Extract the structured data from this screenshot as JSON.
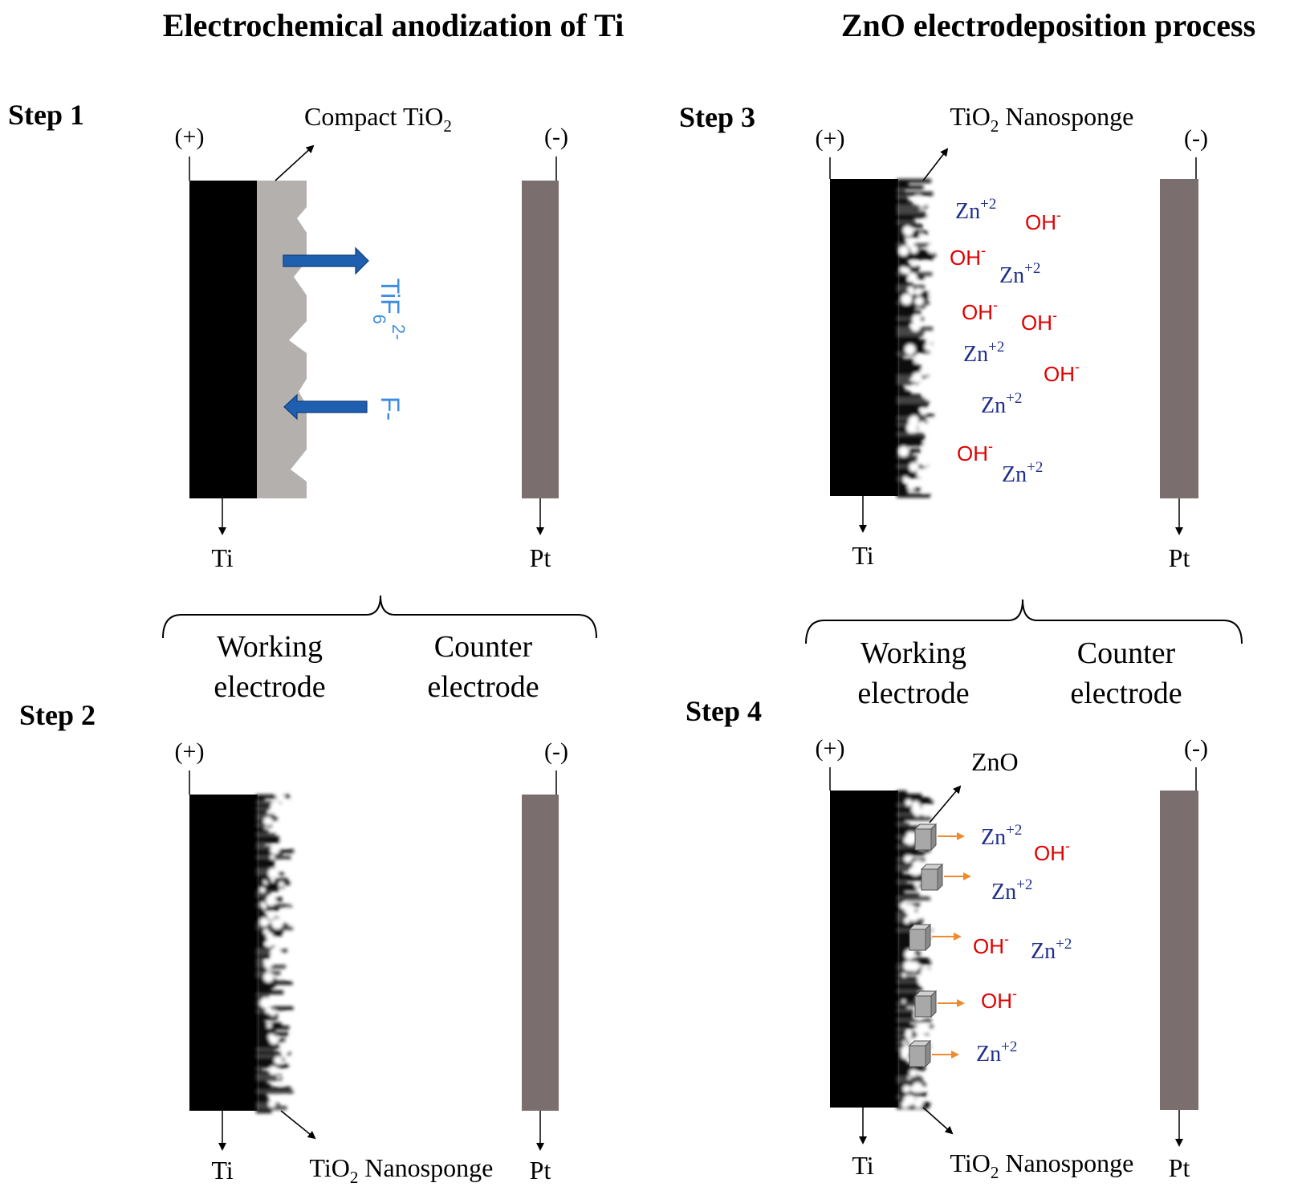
{
  "colors": {
    "electrode": "#000000",
    "counter": "#7a6e6e",
    "compact": "#b4b0ae",
    "blue_arrow": "#1f5fb0",
    "blue_label": "#3d8ee0",
    "zn": "#1f2f8a",
    "oh": "#e00000",
    "orange": "#f08a2e",
    "cube": "#a8a8a8"
  },
  "titles": {
    "anodization": "Electrochemical anodization of Ti",
    "electrodeposition": "ZnO electrodeposition process"
  },
  "step1": {
    "label": "Step 1",
    "plus": "(+)",
    "minus": "(-)",
    "compact_base": "Compact TiO",
    "compact_sub": "2",
    "tif_base": "TiF",
    "tif_sub": "6",
    "tif_sup": "2-",
    "f_ion": "F-",
    "ti": "Ti",
    "pt": "Pt"
  },
  "step2": {
    "label": "Step 2",
    "plus": "(+)",
    "minus": "(-)",
    "nanosponge_base": "TiO",
    "nanosponge_sub": "2",
    "nanosponge_rest": " Nanosponge",
    "ti": "Ti",
    "pt": "Pt"
  },
  "step3": {
    "label": "Step 3",
    "plus": "(+)",
    "minus": "(-)",
    "nanosponge_base": "TiO",
    "nanosponge_sub": "2",
    "nanosponge_rest": " Nanosponge",
    "ti": "Ti",
    "pt": "Pt",
    "ion_base_zn": "Zn",
    "ion_sup_zn": "+2",
    "ion_base_oh": "OH",
    "ion_sup_oh": "-"
  },
  "step4": {
    "label": "Step 4",
    "plus": "(+)",
    "minus": "(-)",
    "zno": "ZnO",
    "nanosponge_base": "TiO",
    "nanosponge_sub": "2",
    "nanosponge_rest": " Nanosponge",
    "ti": "Ti",
    "pt": "Pt",
    "ion_base_zn": "Zn",
    "ion_sup_zn": "+2",
    "ion_base_oh": "OH",
    "ion_sup_oh": "-"
  },
  "legend_left": {
    "working_1": "Working",
    "working_2": "electrode",
    "counter_1": "Counter",
    "counter_2": "electrode"
  },
  "legend_right": {
    "working_1": "Working",
    "working_2": "electrode",
    "counter_1": "Counter",
    "counter_2": "electrode"
  }
}
